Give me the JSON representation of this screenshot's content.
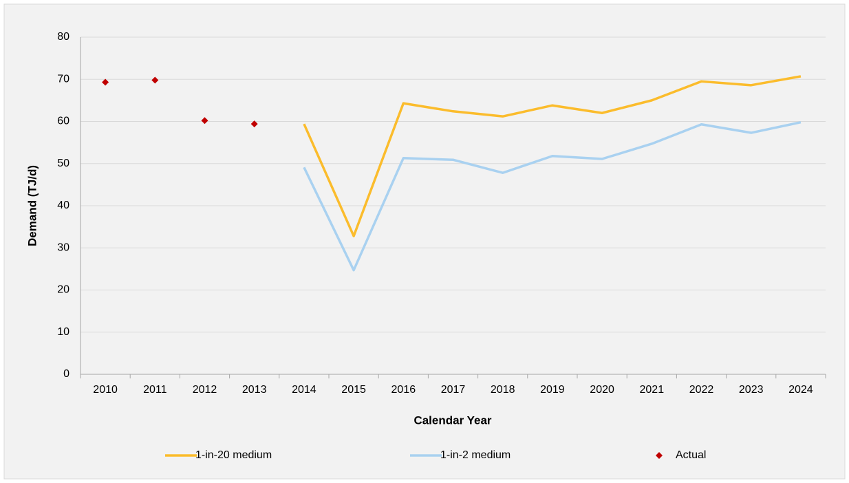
{
  "chart_data": {
    "type": "line",
    "x_label": "Calendar Year",
    "y_label": "Demand (TJ/d)",
    "categories": [
      "2010",
      "2011",
      "2012",
      "2013",
      "2014",
      "2015",
      "2016",
      "2017",
      "2018",
      "2019",
      "2020",
      "2021",
      "2022",
      "2023",
      "2024"
    ],
    "series": [
      {
        "name": "1-in-20 medium",
        "color": "#fbbc2c",
        "style": "line",
        "values": [
          null,
          null,
          null,
          null,
          59.4,
          32.8,
          64.3,
          62.4,
          61.2,
          63.8,
          62.0,
          65.0,
          69.5,
          68.6,
          70.7
        ]
      },
      {
        "name": "1-in-2 medium",
        "color": "#a9d1f0",
        "style": "line",
        "values": [
          null,
          null,
          null,
          null,
          49.1,
          24.7,
          51.3,
          50.9,
          47.8,
          51.8,
          51.1,
          54.7,
          59.3,
          57.3,
          59.8
        ]
      },
      {
        "name": "Actual",
        "color": "#c00000",
        "style": "diamond",
        "values": [
          69.3,
          69.8,
          60.2,
          59.4,
          null,
          null,
          null,
          null,
          null,
          null,
          null,
          null,
          null,
          null,
          null
        ]
      }
    ],
    "ylim": [
      0,
      80
    ],
    "yticks": [
      0,
      10,
      20,
      30,
      40,
      50,
      60,
      70,
      80
    ],
    "grid": true,
    "legend": "bottom"
  }
}
